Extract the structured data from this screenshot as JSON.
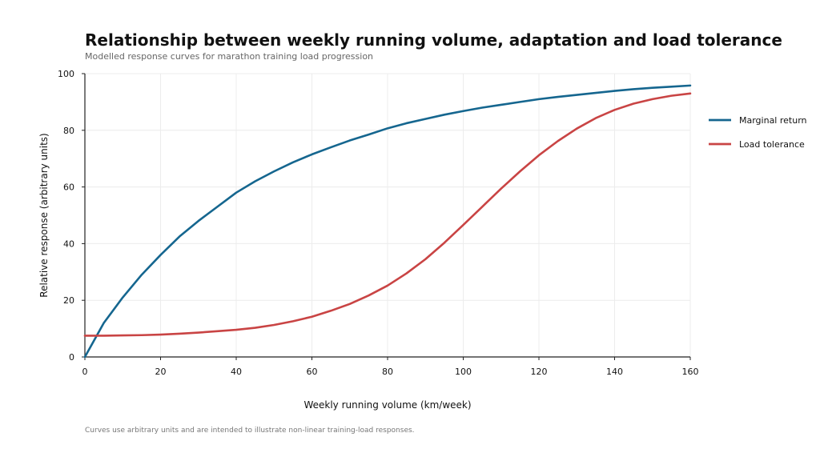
{
  "chart_data": {
    "type": "line",
    "title": "Relationship between weekly running volume, adaptation and load tolerance",
    "subtitle": "Modelled response curves for marathon training load progression",
    "xlabel": "Weekly running volume (km/week)",
    "ylabel": "Relative response (arbitrary units)",
    "xlim": [
      0,
      160
    ],
    "ylim": [
      0,
      100
    ],
    "xticks": [
      0,
      20,
      40,
      60,
      80,
      100,
      120,
      140,
      160
    ],
    "yticks": [
      0,
      20,
      40,
      60,
      80,
      100
    ],
    "grid": true,
    "legend_position": "right",
    "x": [
      0,
      5,
      10,
      15,
      20,
      25,
      30,
      35,
      40,
      45,
      50,
      55,
      60,
      65,
      70,
      75,
      80,
      85,
      90,
      95,
      100,
      105,
      110,
      115,
      120,
      125,
      130,
      135,
      140,
      145,
      150,
      155,
      160
    ],
    "series": [
      {
        "name": "Marginal return",
        "color": "#15668f",
        "values": [
          0,
          12,
          21,
          29,
          36,
          42.5,
          48,
          53,
          58,
          62,
          65.5,
          68.7,
          71.5,
          74,
          76.4,
          78.5,
          80.7,
          82.5,
          84,
          85.5,
          86.8,
          88,
          89,
          90,
          91,
          91.8,
          92.5,
          93.2,
          93.9,
          94.5,
          95,
          95.4,
          95.8
        ]
      },
      {
        "name": "Load tolerance",
        "color": "#c94444",
        "values": [
          7.5,
          7.5,
          7.6,
          7.7,
          7.9,
          8.2,
          8.6,
          9.1,
          9.6,
          10.3,
          11.3,
          12.6,
          14.2,
          16.3,
          18.7,
          21.7,
          25.2,
          29.5,
          34.5,
          40.3,
          46.6,
          53,
          59.4,
          65.5,
          71.2,
          76.2,
          80.6,
          84.3,
          87.2,
          89.4,
          91,
          92.2,
          93
        ]
      }
    ]
  },
  "footnote": "Curves use arbitrary units and are intended to illustrate non-linear training-load responses."
}
